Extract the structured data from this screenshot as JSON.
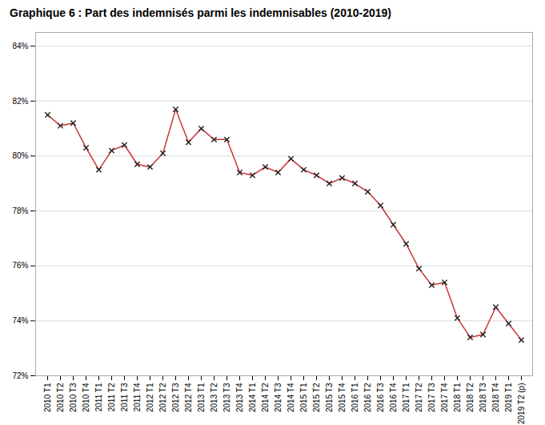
{
  "chart_data": {
    "type": "line",
    "title": "Graphique 6 : Part des indemnisés parmi les indemnisables (2010-2019)",
    "categories": [
      "2010 T1",
      "2010 T2",
      "2010 T3",
      "2010 T4",
      "2011 T1",
      "2011 T2",
      "2011 T3",
      "2011 T4",
      "2012 T1",
      "2012 T2",
      "2012 T3",
      "2012 T4",
      "2013 T1",
      "2013 T2",
      "2013 T3",
      "2013 T4",
      "2014 T1",
      "2014 T2",
      "2014 T3",
      "2014 T4",
      "2015 T1",
      "2015 T2",
      "2015 T3",
      "2015 T4",
      "2016 T1",
      "2016 T2",
      "2016 T3",
      "2016 T4",
      "2017 T1",
      "2017 T2",
      "2017 T3",
      "2017 T4",
      "2018 T1",
      "2018 T2",
      "2018 T3",
      "2018 T4",
      "2019 T1",
      "2019 T2 (p)"
    ],
    "values": [
      81.5,
      81.1,
      81.2,
      80.3,
      79.5,
      80.2,
      80.4,
      79.7,
      79.6,
      80.1,
      81.7,
      80.5,
      81.0,
      80.6,
      80.6,
      79.4,
      79.3,
      79.6,
      79.4,
      79.9,
      79.5,
      79.3,
      79.0,
      79.2,
      79.0,
      78.7,
      78.2,
      77.5,
      76.8,
      75.9,
      75.3,
      75.4,
      74.1,
      73.4,
      73.5,
      74.5,
      73.9,
      73.3
    ],
    "color": "#cc3333",
    "marker": "x",
    "ylim": [
      72,
      84.5
    ],
    "yticks": [
      {
        "value": 72,
        "label": "72%"
      },
      {
        "value": 74,
        "label": "74%"
      },
      {
        "value": 76,
        "label": "76%"
      },
      {
        "value": 78,
        "label": "78%"
      },
      {
        "value": 80,
        "label": "80%"
      },
      {
        "value": 82,
        "label": "82%"
      },
      {
        "value": 84,
        "label": "84%"
      }
    ],
    "grid": true
  }
}
